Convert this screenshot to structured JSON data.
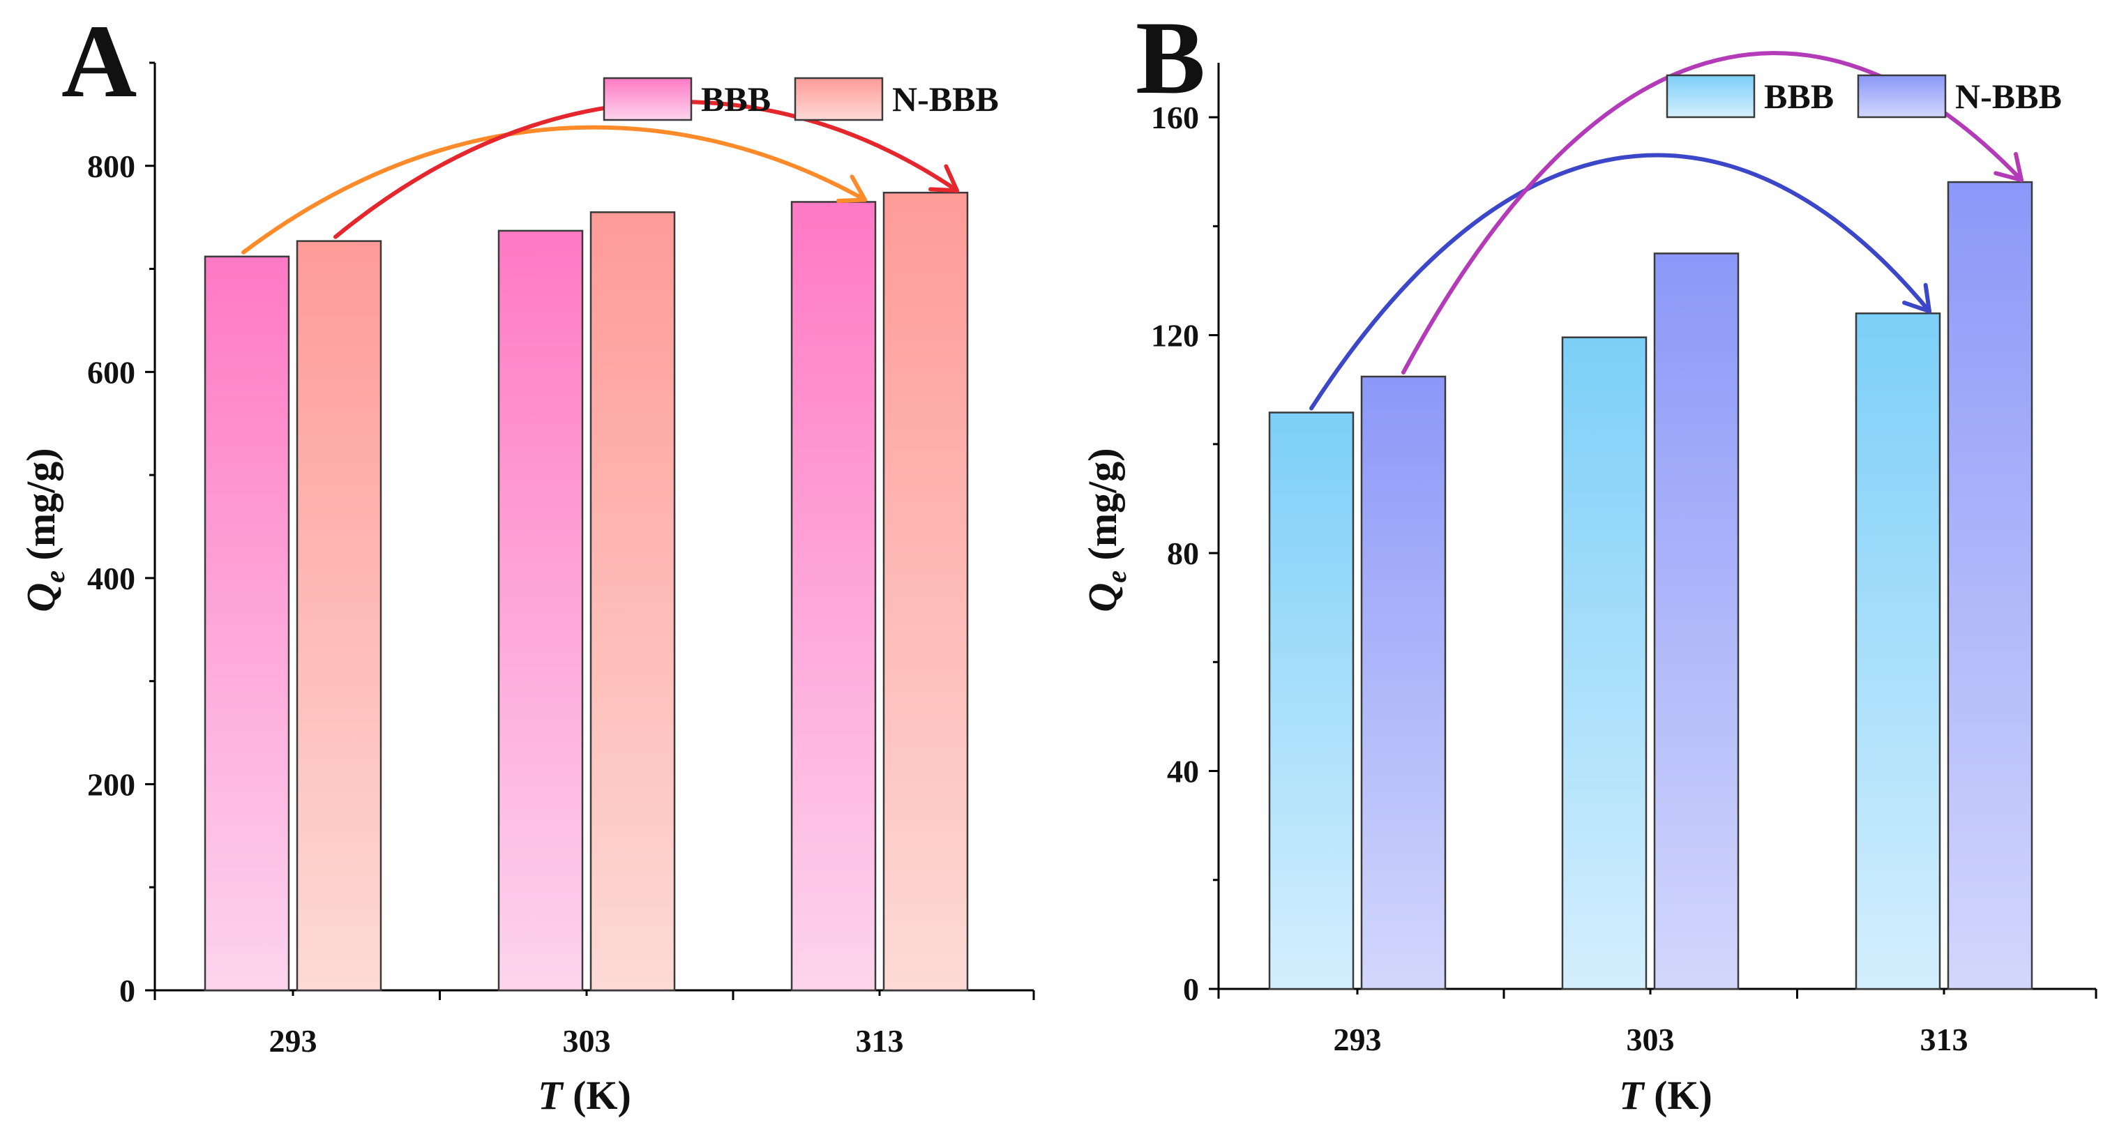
{
  "figure": {
    "panels": [
      {
        "panel_label": "A",
        "xlabel_italic": "T",
        "xlabel_unit": " (K)",
        "ylabel_italic": "Q",
        "ylabel_sub": "e",
        "ylabel_unit": " (mg/g)",
        "colors": {
          "BBB_top": "#ff79c4",
          "BBB_bottom": "#fdd4ee",
          "NBBB_top": "#fe9b98",
          "NBBB_bottom": "#fddad6",
          "arrow_BBB": "#ff8a2a",
          "arrow_NBBB": "#e5262c"
        }
      },
      {
        "panel_label": "B",
        "xlabel_italic": "T",
        "xlabel_unit": " (K)",
        "ylabel_italic": "Q",
        "ylabel_sub": "e",
        "ylabel_unit": " (mg/g)",
        "colors": {
          "BBB_top": "#7ccff8",
          "BBB_bottom": "#d4effe",
          "NBBB_top": "#8b98f8",
          "NBBB_bottom": "#d3d7fc",
          "arrow_BBB": "#3b46c9",
          "arrow_NBBB": "#b43bb8"
        }
      }
    ]
  },
  "chart_data": [
    {
      "type": "bar",
      "title": "A",
      "xlabel": "T (K)",
      "ylabel": "Qe (mg/g)",
      "categories": [
        "293",
        "303",
        "313"
      ],
      "series": [
        {
          "name": "BBB",
          "values": [
            712,
            737,
            765
          ]
        },
        {
          "name": "N-BBB",
          "values": [
            727,
            755,
            774
          ]
        }
      ],
      "ylim": [
        0,
        900
      ],
      "yticks": [
        0,
        200,
        400,
        600,
        800
      ],
      "ytick_labels": [
        "0",
        "200",
        "400",
        "600",
        "800"
      ],
      "legend": [
        "BBB",
        "N-BBB"
      ],
      "legend_position": "top-right",
      "annotations": [
        {
          "series": "BBB",
          "from": "293",
          "to": "313",
          "type": "curved-arrow"
        },
        {
          "series": "N-BBB",
          "from": "293",
          "to": "313",
          "type": "curved-arrow"
        }
      ]
    },
    {
      "type": "bar",
      "title": "B",
      "xlabel": "T (K)",
      "ylabel": "Qe (mg/g)",
      "categories": [
        "293",
        "303",
        "313"
      ],
      "series": [
        {
          "name": "BBB",
          "values": [
            105.8,
            119.6,
            124.0
          ]
        },
        {
          "name": "N-BBB",
          "values": [
            112.4,
            135.0,
            148.1
          ]
        }
      ],
      "ylim": [
        0,
        170
      ],
      "yticks": [
        0,
        40,
        80,
        120,
        160
      ],
      "ytick_labels": [
        "0",
        "40",
        "80",
        "120",
        "160"
      ],
      "legend": [
        "BBB",
        "N-BBB"
      ],
      "legend_position": "top-right",
      "annotations": [
        {
          "series": "BBB",
          "from": "293",
          "to": "313",
          "type": "curved-arrow"
        },
        {
          "series": "N-BBB",
          "from": "293",
          "to": "313",
          "type": "curved-arrow"
        }
      ]
    }
  ]
}
